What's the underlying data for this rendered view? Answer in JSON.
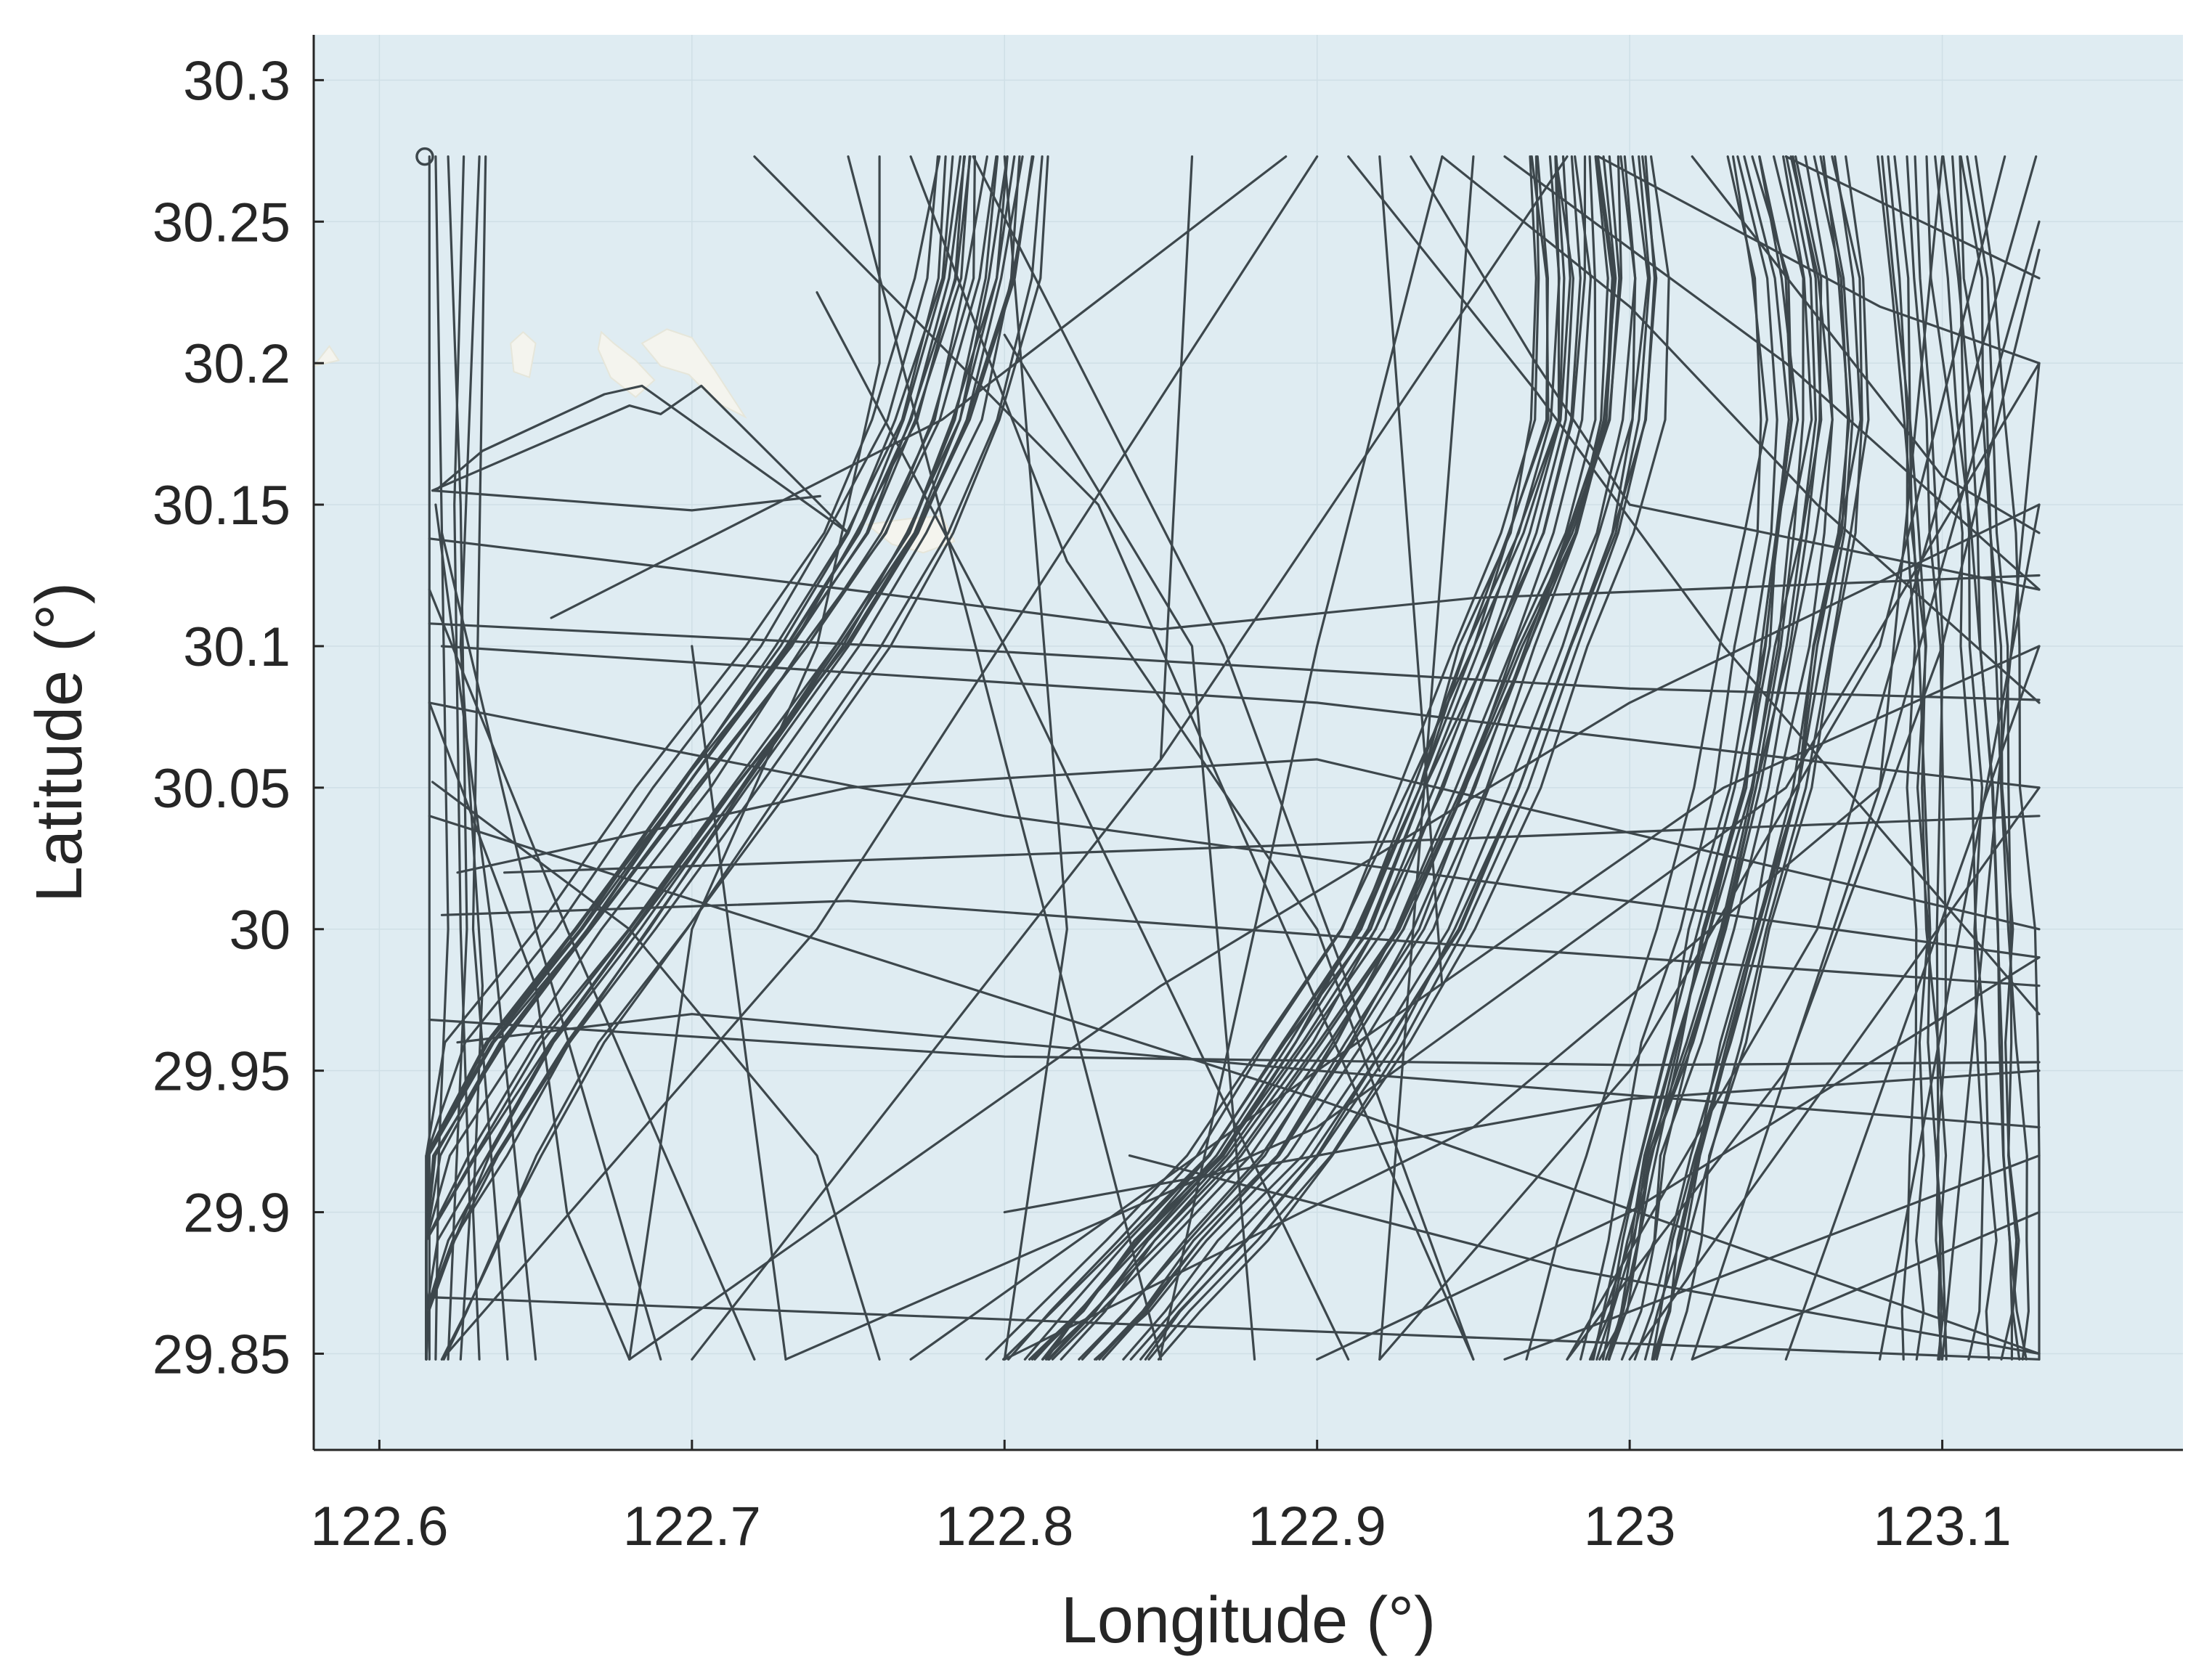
{
  "chart_data": {
    "type": "line",
    "title": "",
    "xlabel": "Longitude (°)",
    "ylabel": "Latitude (°)",
    "xlim": [
      122.579,
      123.177
    ],
    "ylim": [
      29.816,
      30.316
    ],
    "xticks": [
      122.6,
      122.7,
      122.8,
      122.9,
      123,
      123.1
    ],
    "xtick_labels": [
      "122.6",
      "122.7",
      "122.8",
      "122.9",
      "123",
      "123.1"
    ],
    "yticks": [
      29.85,
      29.9,
      29.95,
      30,
      30.05,
      30.1,
      30.15,
      30.2,
      30.25,
      30.3
    ],
    "ytick_labels": [
      "29.85",
      "29.9",
      "29.95",
      "30",
      "30.05",
      "30.1",
      "30.15",
      "30.2",
      "30.25",
      "30.3"
    ],
    "grid": true,
    "legend": "none",
    "colors": {
      "track": "#3d474c",
      "sea": "#dfecf2",
      "land": "#f4f4ee",
      "grid": "#cfdfe6",
      "axis": "#262626"
    },
    "region": {
      "lon": [
        122.615,
        123.131
      ],
      "lat": [
        29.848,
        30.273
      ]
    },
    "land_areas": [
      [
        [
          122.642,
          30.207
        ],
        [
          122.646,
          30.211
        ],
        [
          122.65,
          30.207
        ],
        [
          122.648,
          30.195
        ],
        [
          122.643,
          30.197
        ]
      ],
      [
        [
          122.671,
          30.211
        ],
        [
          122.675,
          30.207
        ],
        [
          122.682,
          30.201
        ],
        [
          122.688,
          30.194
        ],
        [
          122.682,
          30.188
        ],
        [
          122.674,
          30.195
        ],
        [
          122.67,
          30.205
        ]
      ],
      [
        [
          122.684,
          30.207
        ],
        [
          122.692,
          30.212
        ],
        [
          122.7,
          30.209
        ],
        [
          122.707,
          30.198
        ],
        [
          122.717,
          30.181
        ],
        [
          122.708,
          30.186
        ],
        [
          122.699,
          30.196
        ],
        [
          122.69,
          30.199
        ]
      ],
      [
        [
          122.756,
          30.143
        ],
        [
          122.764,
          30.136
        ],
        [
          122.774,
          30.133
        ],
        [
          122.784,
          30.137
        ],
        [
          122.78,
          30.146
        ],
        [
          122.769,
          30.145
        ]
      ],
      [
        [
          122.579,
          30.199
        ],
        [
          122.584,
          30.206
        ],
        [
          122.587,
          30.201
        ]
      ]
    ],
    "series": [
      {
        "x": [
          122.616,
          122.616
        ],
        "y": [
          30.273,
          29.848
        ]
      },
      {
        "x": [
          122.618,
          122.62,
          122.622,
          122.619,
          122.618
        ],
        "y": [
          30.273,
          30.14,
          30.0,
          29.92,
          29.848
        ]
      },
      {
        "x": [
          122.622,
          122.626,
          122.628,
          122.624,
          122.622
        ],
        "y": [
          30.273,
          30.15,
          30.0,
          29.9,
          29.848
        ]
      },
      {
        "x": [
          122.627,
          122.624,
          122.626,
          122.629,
          122.626
        ],
        "y": [
          30.273,
          30.15,
          30.0,
          29.9,
          29.848
        ]
      },
      {
        "x": [
          122.632,
          122.626,
          122.633,
          122.63,
          122.632
        ],
        "y": [
          30.273,
          30.1,
          29.98,
          29.9,
          29.848
        ]
      },
      {
        "x": [
          122.634,
          122.63,
          122.641
        ],
        "y": [
          30.273,
          30.0,
          29.848
        ]
      },
      {
        "x": [
          122.618,
          122.636,
          122.65
        ],
        "y": [
          30.15,
          30.0,
          29.848
        ]
      },
      {
        "x": [
          122.62,
          122.65,
          122.69
        ],
        "y": [
          30.14,
          30.0,
          29.848
        ]
      },
      {
        "x": [
          122.616,
          122.66,
          122.72
        ],
        "y": [
          30.12,
          30.0,
          29.848
        ]
      },
      {
        "x": [
          122.616,
          122.65,
          122.66,
          122.68
        ],
        "y": [
          30.08,
          29.98,
          29.9,
          29.848
        ]
      },
      {
        "x": [
          122.617,
          122.68,
          122.74,
          122.76
        ],
        "y": [
          30.052,
          30.0,
          29.92,
          29.848
        ]
      },
      {
        "x": [
          122.618,
          122.633,
          122.672,
          122.684,
          122.75
        ],
        "y": [
          30.155,
          30.169,
          30.189,
          30.192,
          30.14
        ]
      },
      {
        "x": [
          122.617,
          122.68,
          122.69,
          122.703,
          122.732,
          122.75
        ],
        "y": [
          30.155,
          30.185,
          30.182,
          30.192,
          30.16,
          30.14
        ]
      },
      {
        "x": [
          122.617,
          122.7,
          122.741
        ],
        "y": [
          30.155,
          30.148,
          30.153
        ]
      },
      {
        "x": [
          122.616,
          122.75,
          122.85,
          122.95,
          123.131
        ],
        "y": [
          30.138,
          30.12,
          30.106,
          30.117,
          30.125
        ]
      },
      {
        "x": [
          122.616,
          122.8,
          123.0,
          123.131
        ],
        "y": [
          30.108,
          30.098,
          30.085,
          30.081
        ]
      },
      {
        "x": [
          122.616,
          122.8,
          123.131
        ],
        "y": [
          30.08,
          30.04,
          29.99
        ]
      },
      {
        "x": [
          122.62,
          122.9,
          123.131
        ],
        "y": [
          30.1,
          30.08,
          30.05
        ]
      },
      {
        "x": [
          122.625,
          122.75,
          122.9,
          123.131
        ],
        "y": [
          30.02,
          30.05,
          30.06,
          30.0
        ]
      },
      {
        "x": [
          122.62,
          122.75,
          123.0,
          123.131
        ],
        "y": [
          30.005,
          30.01,
          29.99,
          29.98
        ]
      },
      {
        "x": [
          122.625,
          122.7,
          122.9,
          123.131
        ],
        "y": [
          29.96,
          29.97,
          29.95,
          29.93
        ]
      },
      {
        "x": [
          122.616,
          122.8,
          123.0,
          123.131
        ],
        "y": [
          29.968,
          29.955,
          29.952,
          29.953
        ]
      },
      {
        "x": [
          122.64,
          122.9,
          123.131
        ],
        "y": [
          30.02,
          30.03,
          30.04
        ]
      },
      {
        "x": [
          122.616,
          122.9,
          123.131
        ],
        "y": [
          30.04,
          29.94,
          29.85
        ]
      },
      {
        "x": [
          122.74,
          122.8,
          122.91
        ],
        "y": [
          30.225,
          30.1,
          29.848
        ]
      },
      {
        "x": [
          122.76,
          122.76,
          122.74,
          122.7,
          122.68
        ],
        "y": [
          30.273,
          30.2,
          30.1,
          30.0,
          29.848
        ]
      },
      {
        "x": [
          122.77,
          122.82,
          122.9,
          122.95
        ],
        "y": [
          30.273,
          30.13,
          30.0,
          29.848
        ]
      },
      {
        "x": [
          122.79,
          122.87,
          122.92
        ],
        "y": [
          30.273,
          30.1,
          29.95
        ]
      },
      {
        "x": [
          122.86,
          122.85
        ],
        "y": [
          30.273,
          30.06
        ]
      },
      {
        "x": [
          122.72,
          122.83,
          122.95
        ],
        "y": [
          30.273,
          30.15,
          29.848
        ]
      },
      {
        "x": [
          122.655,
          122.78,
          122.89
        ],
        "y": [
          30.11,
          30.18,
          30.273
        ]
      },
      {
        "x": [
          122.62,
          122.74,
          122.9
        ],
        "y": [
          29.848,
          30.0,
          30.273
        ]
      },
      {
        "x": [
          122.7,
          122.85,
          122.98
        ],
        "y": [
          29.848,
          30.06,
          30.273
        ]
      },
      {
        "x": [
          122.85,
          122.9,
          122.94
        ],
        "y": [
          29.85,
          30.1,
          30.273
        ]
      },
      {
        "x": [
          122.92,
          122.94
        ],
        "y": [
          30.273,
          29.98
        ]
      },
      {
        "x": [
          122.93,
          122.97,
          123.0,
          123.131
        ],
        "y": [
          30.273,
          30.2,
          30.15,
          30.12
        ]
      },
      {
        "x": [
          122.91,
          122.97,
          123.03,
          123.131
        ],
        "y": [
          30.273,
          30.19,
          30.1,
          29.97
        ]
      },
      {
        "x": [
          122.94,
          123.0,
          123.06,
          123.131
        ],
        "y": [
          30.273,
          30.22,
          30.15,
          30.08
        ]
      },
      {
        "x": [
          122.96,
          123.05,
          123.131
        ],
        "y": [
          30.273,
          30.2,
          30.12
        ]
      },
      {
        "x": [
          122.99,
          123.08,
          123.131
        ],
        "y": [
          30.273,
          30.22,
          30.2
        ]
      },
      {
        "x": [
          123.05,
          123.131
        ],
        "y": [
          30.273,
          30.23
        ]
      },
      {
        "x": [
          123.02,
          123.1,
          123.131
        ],
        "y": [
          30.273,
          30.16,
          30.14
        ]
      },
      {
        "x": [
          122.77,
          122.9,
          123.03,
          123.131
        ],
        "y": [
          29.848,
          29.95,
          30.05,
          30.1
        ]
      },
      {
        "x": [
          122.68,
          122.85,
          123.0,
          123.131
        ],
        "y": [
          29.848,
          29.98,
          30.08,
          30.15
        ]
      },
      {
        "x": [
          122.73,
          122.9,
          123.05,
          123.131
        ],
        "y": [
          29.848,
          29.93,
          30.05,
          30.2
        ]
      },
      {
        "x": [
          122.8,
          122.95,
          123.08,
          123.131
        ],
        "y": [
          29.848,
          29.93,
          30.05,
          30.25
        ]
      },
      {
        "x": [
          122.9,
          123.0,
          123.131
        ],
        "y": [
          29.848,
          29.9,
          29.99
        ]
      },
      {
        "x": [
          122.8,
          123.0,
          123.131
        ],
        "y": [
          29.9,
          29.94,
          29.95
        ]
      },
      {
        "x": [
          122.84,
          122.98,
          123.131
        ],
        "y": [
          29.92,
          29.88,
          29.85
        ]
      },
      {
        "x": [
          122.96,
          123.131
        ],
        "y": [
          29.848,
          29.92
        ]
      },
      {
        "x": [
          123.0,
          123.131
        ],
        "y": [
          29.848,
          30.05
        ]
      },
      {
        "x": [
          123.05,
          123.131
        ],
        "y": [
          29.848,
          30.1
        ]
      },
      {
        "x": [
          123.08,
          123.131
        ],
        "y": [
          29.848,
          30.15
        ]
      },
      {
        "x": [
          123.1,
          123.131
        ],
        "y": [
          29.848,
          30.2
        ]
      },
      {
        "x": [
          123.02,
          123.131
        ],
        "y": [
          29.848,
          29.9
        ]
      },
      {
        "x": [
          122.6,
          123.131
        ],
        "y": [
          29.87,
          29.848
        ]
      },
      {
        "x": [
          123.131,
          123.1,
          123.05,
          122.98
        ],
        "y": [
          30.24,
          30.1,
          29.95,
          29.848
        ]
      },
      {
        "x": [
          123.12,
          123.08,
          123.0,
          122.92
        ],
        "y": [
          30.273,
          30.1,
          29.95,
          29.848
        ]
      },
      {
        "x": [
          123.1,
          123.08,
          123.02
        ],
        "y": [
          30.273,
          30.05,
          29.848
        ]
      },
      {
        "x": [
          123.13,
          123.06,
          122.98
        ],
        "y": [
          30.273,
          30.0,
          29.848
        ]
      },
      {
        "x": [
          122.8,
          122.86,
          122.88
        ],
        "y": [
          30.21,
          30.1,
          29.848
        ]
      },
      {
        "x": [
          122.95,
          122.92
        ],
        "y": [
          30.273,
          29.848
        ]
      },
      {
        "x": [
          122.8,
          122.82,
          122.8
        ],
        "y": [
          30.273,
          30.0,
          29.848
        ]
      },
      {
        "x": [
          122.7,
          122.73
        ],
        "y": [
          30.1,
          29.848
        ]
      },
      {
        "x": [
          122.75,
          122.85
        ],
        "y": [
          30.273,
          29.848
        ]
      }
    ],
    "bundles": [
      {
        "count": 22,
        "x0": 122.795,
        "x0_spread": 0.035,
        "x": [
          0,
          -0.004,
          -0.016,
          -0.032,
          -0.055,
          -0.088,
          -0.12,
          -0.148,
          -0.17,
          -0.185,
          -0.196,
          -0.205
        ],
        "y": [
          30.273,
          30.23,
          30.18,
          30.14,
          30.1,
          30.05,
          30.0,
          29.96,
          29.92,
          29.89,
          29.865,
          29.848
        ]
      },
      {
        "count": 26,
        "x0": 122.987,
        "x0_spread": 0.04,
        "x": [
          0,
          0.003,
          0.0,
          -0.01,
          -0.025,
          -0.042,
          -0.062,
          -0.085,
          -0.11,
          -0.135,
          -0.155,
          -0.17
        ],
        "y": [
          30.273,
          30.23,
          30.18,
          30.14,
          30.1,
          30.05,
          30.0,
          29.96,
          29.92,
          29.89,
          29.865,
          29.848
        ]
      },
      {
        "count": 20,
        "x0": 123.05,
        "x0_spread": 0.035,
        "x": [
          0,
          0.008,
          0.01,
          0.006,
          0.0,
          -0.008,
          -0.02,
          -0.03,
          -0.04,
          -0.045,
          -0.05,
          -0.055
        ],
        "y": [
          30.273,
          30.23,
          30.18,
          30.14,
          30.1,
          30.05,
          30.0,
          29.96,
          29.92,
          29.89,
          29.865,
          29.848
        ]
      },
      {
        "count": 14,
        "x0": 123.095,
        "x0_spread": 0.035,
        "x": [
          0,
          0.004,
          0.008,
          0.01,
          0.012,
          0.014,
          0.015,
          0.016,
          0.017,
          0.018,
          0.018,
          0.018
        ],
        "y": [
          30.273,
          30.23,
          30.18,
          30.14,
          30.1,
          30.05,
          30.0,
          29.96,
          29.92,
          29.89,
          29.865,
          29.848
        ]
      }
    ]
  }
}
